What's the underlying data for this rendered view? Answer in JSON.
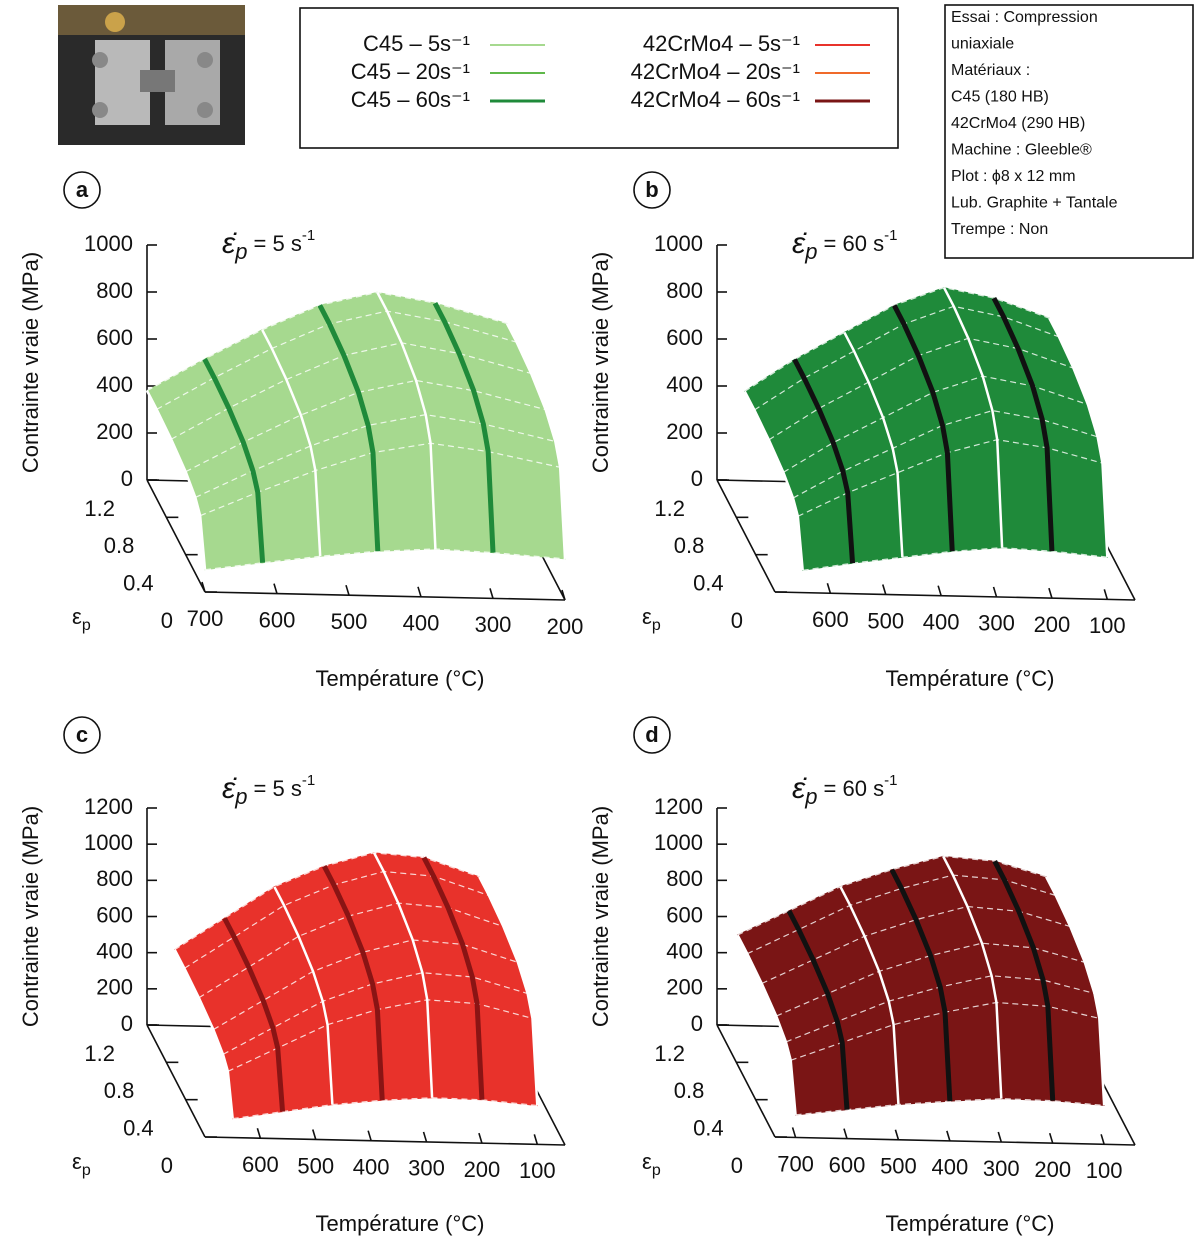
{
  "legend": {
    "entries": [
      {
        "name": "C45 – 5s⁻¹",
        "color": "#a6d98f"
      },
      {
        "name": "C45 – 20s⁻¹",
        "color": "#5fb84a"
      },
      {
        "name": "C45 – 60s⁻¹",
        "color": "#1f8a3a"
      },
      {
        "name": "42CrMo4 – 5s⁻¹",
        "color": "#e8322b"
      },
      {
        "name": "42CrMo4 – 20s⁻¹",
        "color": "#f06a2a"
      },
      {
        "name": "42CrMo4 – 60s⁻¹",
        "color": "#7a1515"
      }
    ]
  },
  "info_box": {
    "lines": [
      "Essai : Compression",
      "uniaxiale",
      "Matériaux :",
      "C45 (180 HB)",
      "42CrMo4 (290 HB)",
      "Machine : Gleeble®",
      "Plot : ϕ8 x 12 mm",
      "Lub. Graphite + Tantale",
      "Trempe : Non"
    ]
  },
  "chart_data": [
    {
      "type": "surface3d",
      "panel": "a",
      "rate_label": {
        "symbol": "ε̇",
        "subscript": "p",
        "value": " = 5 s",
        "superscript": "-1"
      },
      "zlabel": "Contrainte vraie (MPa)",
      "xlabel": "Température (°C)",
      "ylabel": {
        "symbol": "ε",
        "subscript": "p"
      },
      "color": "#a6d98f",
      "accent_color": "#1f8a3a",
      "line_color": "#ffffff",
      "xlim": [
        700,
        200
      ],
      "xticks": [
        700,
        600,
        500,
        400,
        300,
        200
      ],
      "ylim": [
        0,
        1.2
      ],
      "yticks": [
        0,
        0.4,
        0.8,
        1.2
      ],
      "zlim": [
        0,
        1000
      ],
      "zticks": [
        0,
        200,
        400,
        600,
        800,
        1000
      ],
      "temperatures": [
        700,
        620,
        540,
        460,
        380,
        300,
        200
      ],
      "strains": [
        0,
        0.1,
        0.2,
        0.4,
        0.7,
        1.0,
        1.2
      ],
      "z": [
        [
          95,
          285,
          323,
          353,
          372,
          380,
          380
        ],
        [
          130,
          390,
          442,
          484,
          510,
          520,
          520
        ],
        [
          163,
          488,
          553,
          605,
          637,
          650,
          650
        ],
        [
          190,
          570,
          646,
          707,
          745,
          760,
          760
        ],
        [
          205,
          615,
          697,
          763,
          804,
          820,
          820
        ],
        [
          195,
          585,
          663,
          725,
          764,
          780,
          780
        ],
        [
          175,
          525,
          595,
          651,
          686,
          700,
          700
        ]
      ]
    },
    {
      "type": "surface3d",
      "panel": "b",
      "rate_label": {
        "symbol": "ε̇",
        "subscript": "p",
        "value": " = 60 s",
        "superscript": "-1"
      },
      "zlabel": "Contrainte vraie (MPa)",
      "xlabel": "Température (°C)",
      "ylabel": {
        "symbol": "ε",
        "subscript": "p"
      },
      "color": "#1f8a3a",
      "accent_color": "#111111",
      "line_color": "#ffffff",
      "xlim": [
        700,
        50
      ],
      "xticks": [
        600,
        500,
        400,
        300,
        200,
        100
      ],
      "ylim": [
        0,
        1.2
      ],
      "yticks": [
        0,
        0.4,
        0.8,
        1.2
      ],
      "zlim": [
        0,
        1000
      ],
      "zticks": [
        0,
        200,
        400,
        600,
        800,
        1000
      ],
      "temperatures": [
        650,
        560,
        470,
        380,
        290,
        200,
        100
      ],
      "strains": [
        0,
        0.1,
        0.2,
        0.4,
        0.7,
        1.0,
        1.2
      ],
      "z": [
        [
          95,
          285,
          323,
          353,
          372,
          380,
          380
        ],
        [
          130,
          390,
          442,
          484,
          510,
          520,
          520
        ],
        [
          160,
          480,
          544,
          595,
          627,
          640,
          640
        ],
        [
          190,
          570,
          646,
          707,
          745,
          760,
          760
        ],
        [
          210,
          630,
          714,
          781,
          823,
          840,
          840
        ],
        [
          200,
          600,
          680,
          744,
          784,
          800,
          800
        ],
        [
          180,
          540,
          612,
          670,
          706,
          720,
          720
        ]
      ]
    },
    {
      "type": "surface3d",
      "panel": "c",
      "rate_label": {
        "symbol": "ε̇",
        "subscript": "p",
        "value": " = 5 s",
        "superscript": "-1"
      },
      "zlabel": "Contrainte vraie (MPa)",
      "xlabel": "Température (°C)",
      "ylabel": {
        "symbol": "ε",
        "subscript": "p"
      },
      "color": "#e8322b",
      "accent_color": "#8a1414",
      "line_color": "#ffffff",
      "xlim": [
        700,
        50
      ],
      "xticks": [
        600,
        500,
        400,
        300,
        200,
        100
      ],
      "ylim": [
        0,
        1.2
      ],
      "yticks": [
        0,
        0.4,
        0.8,
        1.2
      ],
      "zlim": [
        0,
        1200
      ],
      "zticks": [
        0,
        200,
        400,
        600,
        800,
        1000,
        1200
      ],
      "temperatures": [
        650,
        560,
        470,
        380,
        290,
        200,
        100
      ],
      "strains": [
        0,
        0.1,
        0.2,
        0.4,
        0.7,
        1.0,
        1.2
      ],
      "z": [
        [
          105,
          315,
          357,
          391,
          412,
          420,
          420
        ],
        [
          150,
          450,
          510,
          558,
          588,
          600,
          600
        ],
        [
          195,
          585,
          663,
          725,
          764,
          780,
          780
        ],
        [
          225,
          675,
          765,
          837,
          882,
          900,
          900
        ],
        [
          245,
          735,
          833,
          911,
          960,
          980,
          980
        ],
        [
          240,
          720,
          816,
          893,
          941,
          960,
          960
        ],
        [
          215,
          645,
          731,
          800,
          843,
          860,
          860
        ]
      ]
    },
    {
      "type": "surface3d",
      "panel": "d",
      "rate_label": {
        "symbol": "ε̇",
        "subscript": "p",
        "value": " = 60 s",
        "superscript": "-1"
      },
      "zlabel": "Contrainte vraie (MPa)",
      "xlabel": "Température (°C)",
      "ylabel": {
        "symbol": "ε",
        "subscript": "p"
      },
      "color": "#7a1515",
      "accent_color": "#111111",
      "line_color": "#ffffff",
      "xlim": [
        740,
        40
      ],
      "xticks": [
        700,
        600,
        500,
        400,
        300,
        200,
        100
      ],
      "ylim": [
        0,
        1.2
      ],
      "yticks": [
        0,
        0.4,
        0.8,
        1.2
      ],
      "zlim": [
        0,
        1200
      ],
      "zticks": [
        0,
        200,
        400,
        600,
        800,
        1000,
        1200
      ],
      "temperatures": [
        700,
        600,
        500,
        400,
        300,
        200,
        100
      ],
      "strains": [
        0,
        0.1,
        0.2,
        0.4,
        0.7,
        1.0,
        1.2
      ],
      "z": [
        [
          125,
          375,
          425,
          465,
          490,
          500,
          500
        ],
        [
          160,
          480,
          544,
          595,
          627,
          640,
          640
        ],
        [
          195,
          585,
          663,
          725,
          764,
          780,
          780
        ],
        [
          220,
          660,
          748,
          818,
          862,
          880,
          880
        ],
        [
          240,
          720,
          816,
          893,
          941,
          960,
          960
        ],
        [
          235,
          705,
          799,
          874,
          921,
          940,
          940
        ],
        [
          215,
          645,
          731,
          800,
          843,
          860,
          860
        ]
      ]
    }
  ]
}
